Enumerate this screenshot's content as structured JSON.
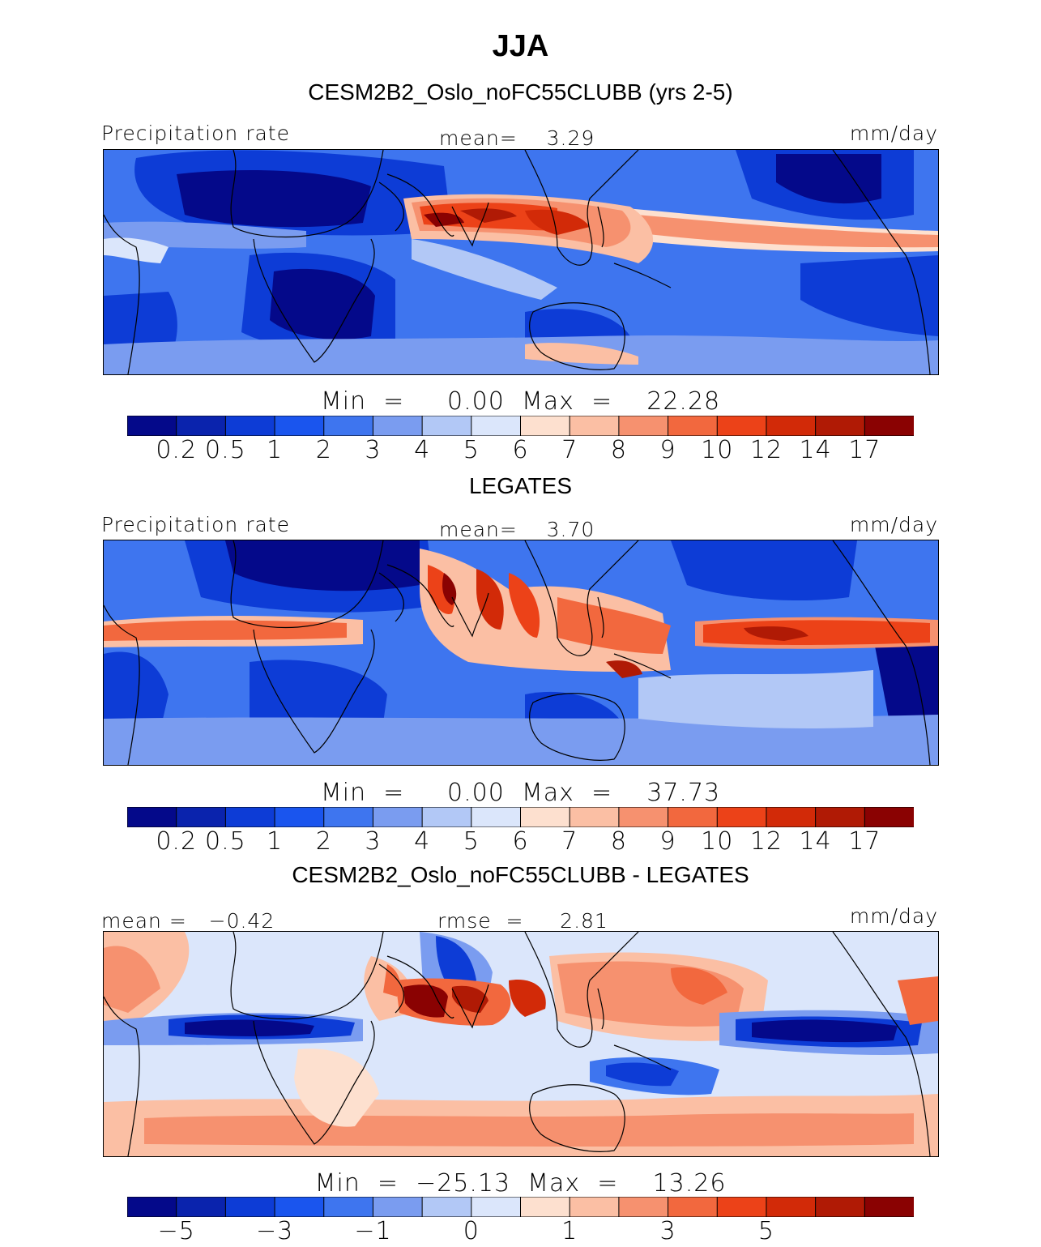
{
  "title": "JJA",
  "panels": [
    {
      "header": "CESM2B2_Oslo_noFC55CLUBB (yrs 2-5)",
      "left_label": "Precipitation rate",
      "center_label": "mean=    3.29",
      "units": "mm/day",
      "min_max": "Min  =     0.00  Max  =    22.28",
      "min": 0.0,
      "max": 22.28,
      "mean": 3.29
    },
    {
      "header": "LEGATES",
      "left_label": "Precipitation rate",
      "center_label": "mean=    3.70",
      "units": "mm/day",
      "min_max": "Min  =     0.00  Max  =    37.73",
      "min": 0.0,
      "max": 37.73,
      "mean": 3.7
    },
    {
      "header": "CESM2B2_Oslo_noFC55CLUBB - LEGATES",
      "left_label": "mean =   −0.42",
      "center_label": "rmse  =     2.81",
      "units": "mm/day",
      "min_max": "Min  =  −25.13  Max  =    13.26",
      "min": -25.13,
      "max": 13.26,
      "mean": -0.42,
      "rmse": 2.81
    }
  ],
  "colorbars": {
    "precip": {
      "colors": [
        "#04098a",
        "#0a23ad",
        "#0d3cd6",
        "#1a55ee",
        "#3e75ef",
        "#7a9cf0",
        "#b2c8f6",
        "#dbe6fb",
        "#fde0cf",
        "#fbbfa4",
        "#f6916f",
        "#f2683e",
        "#ec4218",
        "#d22a08",
        "#b01a05",
        "#8a0202"
      ],
      "tick_labels": [
        "0.2",
        "0.5",
        "1",
        "2",
        "3",
        "4",
        "5",
        "6",
        "7",
        "8",
        "9",
        "10",
        "12",
        "14",
        "17"
      ]
    },
    "diff": {
      "colors": [
        "#04098a",
        "#0a23ad",
        "#0d3cd6",
        "#1a55ee",
        "#3e75ef",
        "#7a9cf0",
        "#b2c8f6",
        "#dbe6fb",
        "#fde0cf",
        "#fbbfa4",
        "#f6916f",
        "#f2683e",
        "#ec4218",
        "#d22a08",
        "#b01a05",
        "#8a0202"
      ],
      "tick_labels": [
        "−5",
        "−3",
        "−1",
        "0",
        "1",
        "3",
        "5"
      ],
      "tick_boundary_index": [
        1,
        3,
        5,
        7,
        9,
        11,
        13
      ]
    }
  },
  "chart_data": [
    {
      "type": "heatmap",
      "title": "CESM2B2_Oslo_noFC55CLUBB (yrs 2-5)",
      "variable": "Precipitation rate",
      "units": "mm/day",
      "mean": 3.29,
      "min": 0.0,
      "max": 22.28,
      "levels": [
        0.2,
        0.5,
        1,
        2,
        3,
        4,
        5,
        6,
        7,
        8,
        9,
        10,
        12,
        14,
        17
      ]
    },
    {
      "type": "heatmap",
      "title": "LEGATES",
      "variable": "Precipitation rate",
      "units": "mm/day",
      "mean": 3.7,
      "min": 0.0,
      "max": 37.73,
      "levels": [
        0.2,
        0.5,
        1,
        2,
        3,
        4,
        5,
        6,
        7,
        8,
        9,
        10,
        12,
        14,
        17
      ]
    },
    {
      "type": "heatmap",
      "title": "CESM2B2_Oslo_noFC55CLUBB - LEGATES",
      "units": "mm/day",
      "mean": -0.42,
      "rmse": 2.81,
      "min": -25.13,
      "max": 13.26,
      "levels": [
        -5,
        -3,
        -1,
        0,
        1,
        3,
        5
      ]
    }
  ]
}
